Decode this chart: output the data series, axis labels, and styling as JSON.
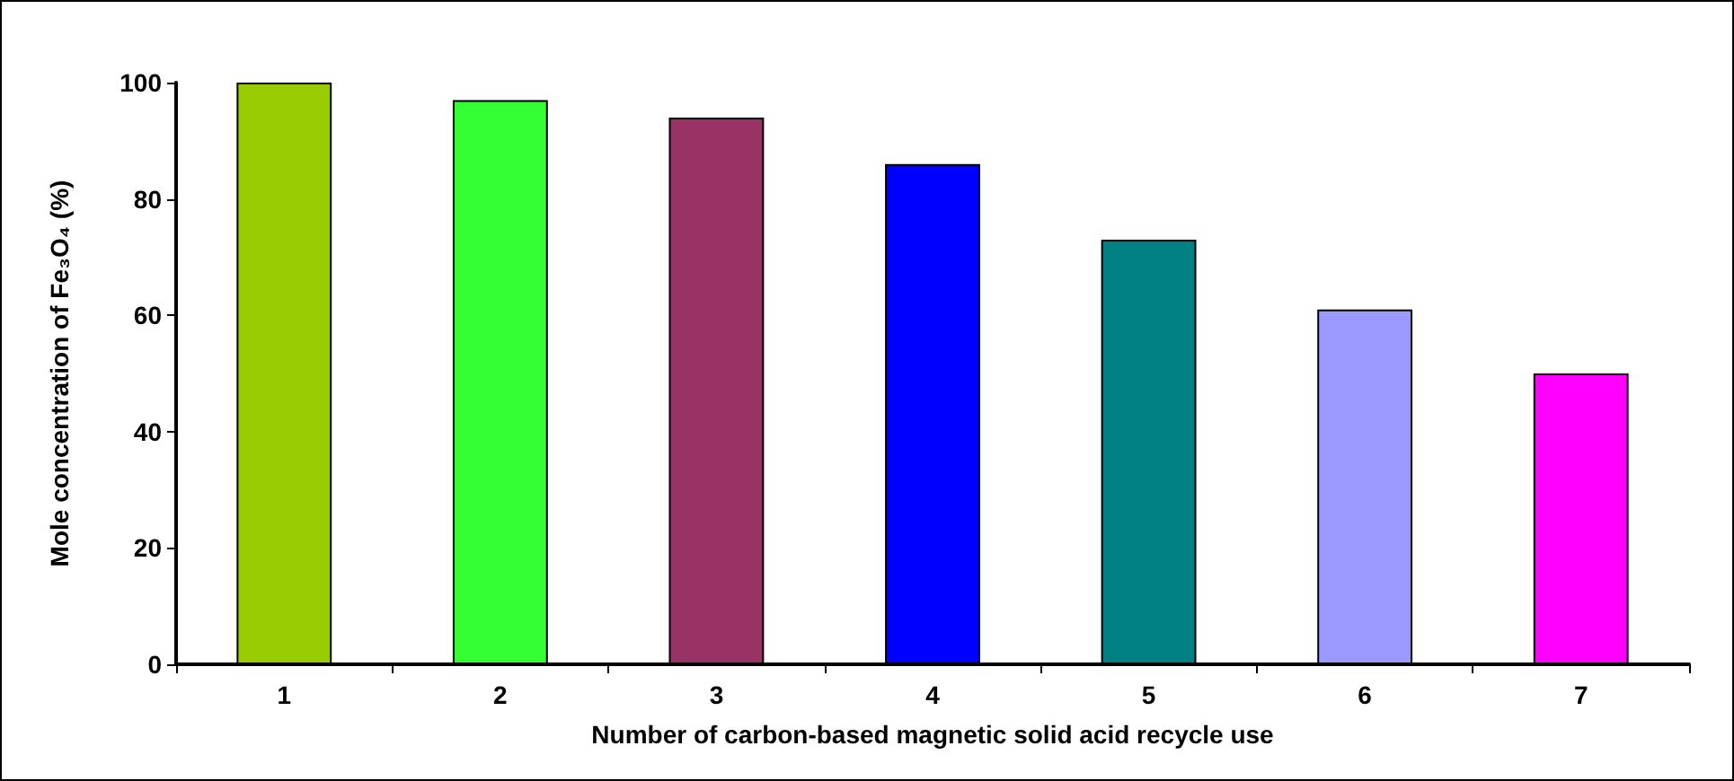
{
  "chart_data": {
    "type": "bar",
    "xlabel": "Number of carbon-based magnetic solid acid recycle use",
    "ylabel": "Mole concentration of Fe₃O₄ (%)",
    "categories": [
      "1",
      "2",
      "3",
      "4",
      "5",
      "6",
      "7"
    ],
    "values": [
      100,
      97,
      94,
      86,
      73,
      61,
      50
    ],
    "colors": [
      "#99cc00",
      "#33ff33",
      "#993366",
      "#0000ff",
      "#008080",
      "#9999ff",
      "#ff00ff"
    ],
    "ylim": [
      0,
      100
    ],
    "yticks": [
      0,
      20,
      40,
      60,
      80,
      100
    ]
  }
}
